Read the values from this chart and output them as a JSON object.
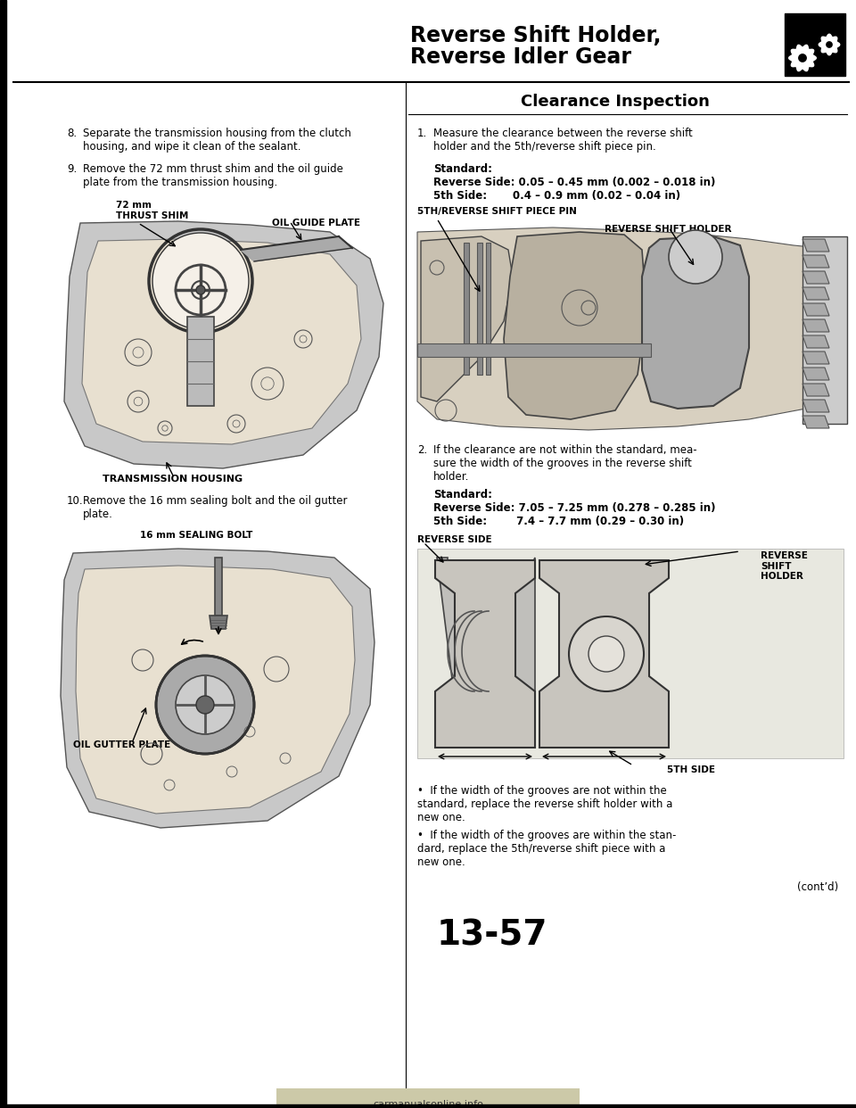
{
  "bg_color": "#ffffff",
  "title_line1": "Reverse Shift Holder,",
  "title_line2": "Reverse Idler Gear",
  "section_title": "Clearance Inspection",
  "item8_num": "8.",
  "item8_text": "Separate the transmission housing from the clutch\nhousing, and wipe it clean of the sealant.",
  "item9_num": "9.",
  "item9_text": "Remove the 72 mm thrust shim and the oil guide\nplate from the transmission housing.",
  "item10_num": "10.",
  "item10_text": "Remove the 16 mm sealing bolt and the oil gutter\nplate.",
  "label_thrust_shim_l1": "72 mm",
  "label_thrust_shim_l2": "THRUST SHIM",
  "label_oil_guide": "OIL GUIDE PLATE",
  "label_transmission": "TRANSMISSION HOUSING",
  "label_sealing_bolt": "16 mm SEALING BOLT",
  "label_oil_gutter": "OIL GUTTER PLATE",
  "item1_num": "1.",
  "item1_text": "Measure the clearance between the reverse shift\nholder and the 5th/reverse shift piece pin.",
  "standard1_label": "Standard:",
  "standard1_l1": "Reverse Side: 0.05 – 0.45 mm (0.002 – 0.018 in)",
  "standard1_l2": "5th Side:       0.4 – 0.9 mm (0.02 – 0.04 in)",
  "label_piece_pin": "5TH/REVERSE SHIFT PIECE PIN",
  "label_rev_shift_holder_top": "REVERSE SHIFT HOLDER",
  "item2_num": "2.",
  "item2_text": "If the clearance are not within the standard, mea-\nsure the width of the grooves in the reverse shift\nholder.",
  "standard2_label": "Standard:",
  "standard2_l1": "Reverse Side: 7.05 – 7.25 mm (0.278 – 0.285 in)",
  "standard2_l2": "5th Side:        7.4 – 7.7 mm (0.29 – 0.30 in)",
  "label_reverse_side": "REVERSE SIDE",
  "label_rev_shift_holder_bot": "REVERSE\nSHIFT\nHOLDER",
  "label_5th_side": "5TH SIDE",
  "bullet1": "If the width of the grooves are not within the\nstandard, replace the reverse shift holder with a\nnew one.",
  "bullet2": "If the width of the grooves are within the stan-\ndard, replace the 5th/reverse shift piece with a\nnew one.",
  "contd": "(cont’d)",
  "page_num": "13-57",
  "watermark": "carmanualsonline.info"
}
